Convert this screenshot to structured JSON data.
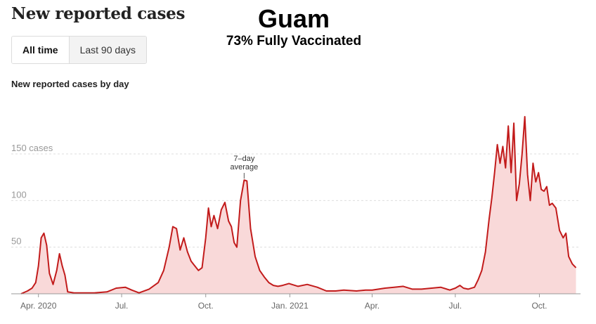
{
  "header": {
    "title": "New reported cases"
  },
  "overlay": {
    "title": "Guam",
    "subtitle": "73% Fully Vaccinated"
  },
  "toggle": {
    "all_time": "All time",
    "last_90": "Last 90 days",
    "selected": "All time"
  },
  "chart_label": "New reported cases by day",
  "colors": {
    "line": "#c21b1b",
    "fill": "#f9d9d9",
    "grid": "#dddddd",
    "axis": "#999999",
    "text": "#666666"
  },
  "chart_data": {
    "type": "area",
    "title": "New reported cases by day",
    "xlabel": "",
    "ylabel": "",
    "ylim": [
      0,
      190
    ],
    "xlim": [
      "2020-03-13",
      "2021-11-15"
    ],
    "grid": true,
    "y_ticks": [
      {
        "value": 150,
        "label": "150 cases"
      },
      {
        "value": 100,
        "label": "100"
      },
      {
        "value": 50,
        "label": "50"
      }
    ],
    "x_ticks": [
      {
        "date": "2020-04-01",
        "label": "Apr. 2020"
      },
      {
        "date": "2020-07-01",
        "label": "Jul."
      },
      {
        "date": "2020-10-01",
        "label": "Oct."
      },
      {
        "date": "2021-01-01",
        "label": "Jan. 2021"
      },
      {
        "date": "2021-04-01",
        "label": "Apr."
      },
      {
        "date": "2021-07-01",
        "label": "Jul."
      },
      {
        "date": "2021-10-01",
        "label": "Oct."
      }
    ],
    "annotation": {
      "lines": [
        "7–day",
        "average"
      ],
      "date": "2020-11-12",
      "value": 122
    },
    "series": [
      {
        "values": [
          [
            "2020-03-13",
            0
          ],
          [
            "2020-03-20",
            3
          ],
          [
            "2020-03-25",
            6
          ],
          [
            "2020-03-29",
            12
          ],
          [
            "2020-04-01",
            30
          ],
          [
            "2020-04-04",
            60
          ],
          [
            "2020-04-07",
            65
          ],
          [
            "2020-04-10",
            52
          ],
          [
            "2020-04-13",
            22
          ],
          [
            "2020-04-17",
            10
          ],
          [
            "2020-04-21",
            25
          ],
          [
            "2020-04-24",
            43
          ],
          [
            "2020-04-27",
            30
          ],
          [
            "2020-04-30",
            20
          ],
          [
            "2020-05-03",
            2
          ],
          [
            "2020-05-10",
            1
          ],
          [
            "2020-05-20",
            1
          ],
          [
            "2020-06-01",
            1
          ],
          [
            "2020-06-15",
            2
          ],
          [
            "2020-06-25",
            6
          ],
          [
            "2020-07-05",
            7
          ],
          [
            "2020-07-12",
            4
          ],
          [
            "2020-07-20",
            1
          ],
          [
            "2020-07-31",
            5
          ],
          [
            "2020-08-10",
            12
          ],
          [
            "2020-08-16",
            25
          ],
          [
            "2020-08-22",
            50
          ],
          [
            "2020-08-26",
            72
          ],
          [
            "2020-08-30",
            70
          ],
          [
            "2020-09-03",
            47
          ],
          [
            "2020-09-07",
            60
          ],
          [
            "2020-09-11",
            45
          ],
          [
            "2020-09-15",
            35
          ],
          [
            "2020-09-19",
            30
          ],
          [
            "2020-09-23",
            25
          ],
          [
            "2020-09-27",
            28
          ],
          [
            "2020-10-01",
            60
          ],
          [
            "2020-10-04",
            92
          ],
          [
            "2020-10-07",
            72
          ],
          [
            "2020-10-10",
            84
          ],
          [
            "2020-10-14",
            70
          ],
          [
            "2020-10-18",
            90
          ],
          [
            "2020-10-22",
            98
          ],
          [
            "2020-10-26",
            78
          ],
          [
            "2020-10-29",
            72
          ],
          [
            "2020-11-01",
            55
          ],
          [
            "2020-11-04",
            50
          ],
          [
            "2020-11-08",
            100
          ],
          [
            "2020-11-12",
            122
          ],
          [
            "2020-11-15",
            121
          ],
          [
            "2020-11-19",
            70
          ],
          [
            "2020-11-24",
            40
          ],
          [
            "2020-11-29",
            25
          ],
          [
            "2020-12-04",
            18
          ],
          [
            "2020-12-09",
            12
          ],
          [
            "2020-12-14",
            9
          ],
          [
            "2020-12-19",
            8
          ],
          [
            "2020-12-24",
            9
          ],
          [
            "2020-12-31",
            11
          ],
          [
            "2021-01-10",
            8
          ],
          [
            "2021-01-20",
            10
          ],
          [
            "2021-01-31",
            7
          ],
          [
            "2021-02-10",
            3
          ],
          [
            "2021-02-20",
            3
          ],
          [
            "2021-03-01",
            4
          ],
          [
            "2021-03-15",
            3
          ],
          [
            "2021-03-25",
            4
          ],
          [
            "2021-04-01",
            4
          ],
          [
            "2021-04-15",
            6
          ],
          [
            "2021-04-25",
            7
          ],
          [
            "2021-05-05",
            8
          ],
          [
            "2021-05-15",
            5
          ],
          [
            "2021-05-25",
            5
          ],
          [
            "2021-06-05",
            6
          ],
          [
            "2021-06-15",
            7
          ],
          [
            "2021-06-25",
            4
          ],
          [
            "2021-07-01",
            6
          ],
          [
            "2021-07-06",
            9
          ],
          [
            "2021-07-10",
            6
          ],
          [
            "2021-07-15",
            5
          ],
          [
            "2021-07-22",
            7
          ],
          [
            "2021-07-26",
            15
          ],
          [
            "2021-07-30",
            25
          ],
          [
            "2021-08-03",
            45
          ],
          [
            "2021-08-07",
            80
          ],
          [
            "2021-08-10",
            103
          ],
          [
            "2021-08-13",
            130
          ],
          [
            "2021-08-16",
            160
          ],
          [
            "2021-08-19",
            140
          ],
          [
            "2021-08-22",
            158
          ],
          [
            "2021-08-25",
            135
          ],
          [
            "2021-08-28",
            180
          ],
          [
            "2021-08-31",
            130
          ],
          [
            "2021-09-03",
            183
          ],
          [
            "2021-09-06",
            100
          ],
          [
            "2021-09-09",
            118
          ],
          [
            "2021-09-12",
            150
          ],
          [
            "2021-09-15",
            190
          ],
          [
            "2021-09-18",
            128
          ],
          [
            "2021-09-21",
            100
          ],
          [
            "2021-09-24",
            140
          ],
          [
            "2021-09-27",
            120
          ],
          [
            "2021-09-30",
            130
          ],
          [
            "2021-10-03",
            112
          ],
          [
            "2021-10-06",
            110
          ],
          [
            "2021-10-09",
            115
          ],
          [
            "2021-10-12",
            95
          ],
          [
            "2021-10-15",
            97
          ],
          [
            "2021-10-19",
            92
          ],
          [
            "2021-10-23",
            68
          ],
          [
            "2021-10-27",
            60
          ],
          [
            "2021-10-30",
            65
          ],
          [
            "2021-11-02",
            40
          ],
          [
            "2021-11-06",
            32
          ],
          [
            "2021-11-10",
            28
          ]
        ]
      }
    ]
  }
}
